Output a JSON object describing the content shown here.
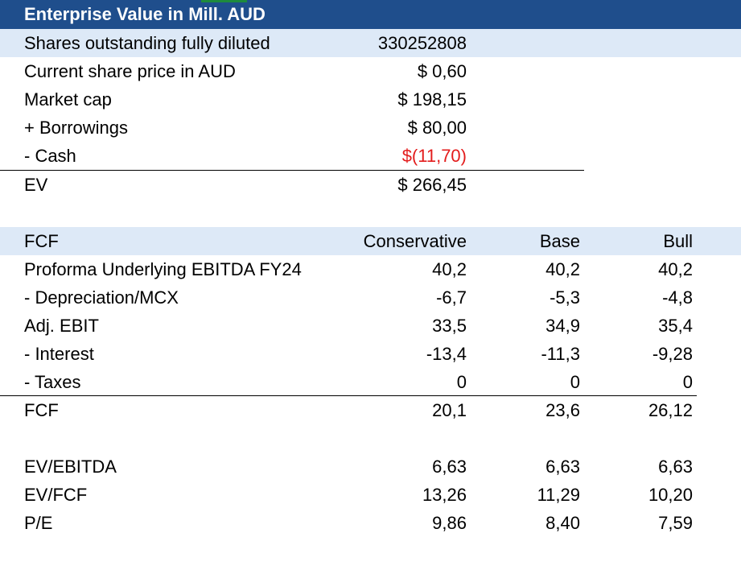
{
  "ev_section": {
    "title": "Enterprise Value in Mill. AUD",
    "rows": [
      {
        "label": "Shares outstanding fully diluted",
        "value": "330252808"
      },
      {
        "label": "Current share price in AUD",
        "value": "$ 0,60"
      },
      {
        "label": "Market cap",
        "value": "$ 198,15"
      },
      {
        "label": "+ Borrowings",
        "value": "$ 80,00"
      },
      {
        "label": "- Cash",
        "value": "$(11,70)"
      }
    ],
    "total": {
      "label": "EV",
      "value": "$ 266,45"
    }
  },
  "fcf_section": {
    "header": {
      "label": "FCF",
      "col1": "Conservative",
      "col2": "Base",
      "col3": "Bull"
    },
    "rows": [
      {
        "label": "Proforma Underlying EBITDA FY24",
        "c1": "40,2",
        "c2": "40,2",
        "c3": "40,2"
      },
      {
        "label": "- Depreciation/MCX",
        "c1": "-6,7",
        "c2": "-5,3",
        "c3": "-4,8"
      },
      {
        "label": "Adj. EBIT",
        "c1": "33,5",
        "c2": "34,9",
        "c3": "35,4"
      },
      {
        "label": "- Interest",
        "c1": "-13,4",
        "c2": "-11,3",
        "c3": "-9,28"
      },
      {
        "label": "- Taxes",
        "c1": "0",
        "c2": "0",
        "c3": "0"
      }
    ],
    "total": {
      "label": "FCF",
      "c1": "20,1",
      "c2": "23,6",
      "c3": "26,12"
    }
  },
  "multiples": {
    "rows": [
      {
        "label": "EV/EBITDA",
        "c1": "6,63",
        "c2": "6,63",
        "c3": "6,63"
      },
      {
        "label": "EV/FCF",
        "c1": "13,26",
        "c2": "11,29",
        "c3": "10,20"
      },
      {
        "label": "P/E",
        "c1": "9,86",
        "c2": "8,40",
        "c3": "7,59"
      }
    ]
  },
  "colors": {
    "title_bar": "#1f4e8c",
    "band": "#dde9f7",
    "negative": "#e31c1c"
  }
}
